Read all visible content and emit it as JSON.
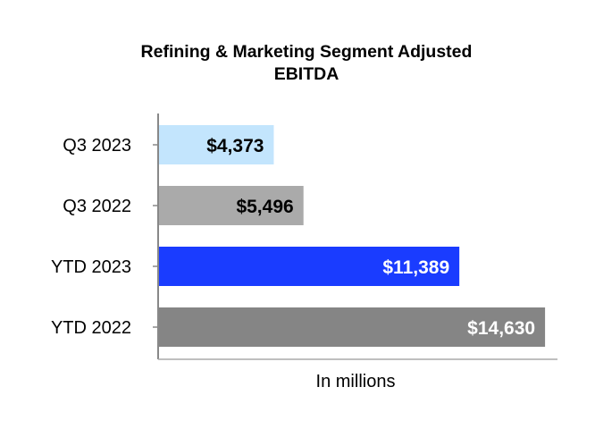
{
  "chart_data": {
    "type": "bar",
    "orientation": "horizontal",
    "title": "Refining & Marketing Segment Adjusted EBITDA",
    "title_lines": [
      "Refining & Marketing Segment Adjusted",
      "EBITDA"
    ],
    "xlabel": "In millions",
    "ylabel": "",
    "categories": [
      "Q3 2023",
      "Q3 2022",
      "YTD 2023",
      "YTD 2022"
    ],
    "values": [
      4373,
      5496,
      11389,
      14630
    ],
    "value_labels": [
      "$4,373",
      "$5,496",
      "$11,389",
      "$14,630"
    ],
    "bar_colors": [
      "#c3e5fd",
      "#aaaaaa",
      "#1a3cff",
      "#858585"
    ],
    "label_colors": [
      "#000000",
      "#000000",
      "#ffffff",
      "#ffffff"
    ],
    "xlim": [
      0,
      15100
    ],
    "grid": false,
    "legend": "none"
  }
}
